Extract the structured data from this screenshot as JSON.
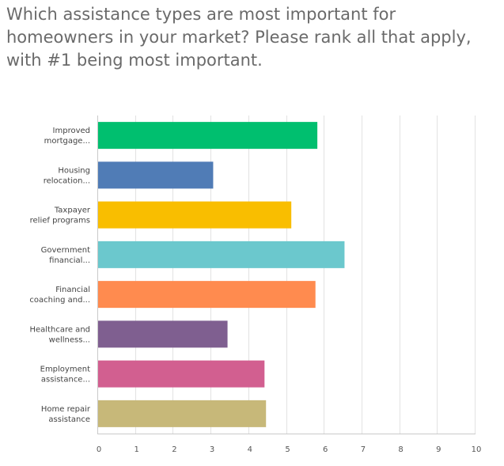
{
  "question": {
    "title": "Which assistance types are most important for homeowners in your market? Please rank all that apply, with #1 being most important."
  },
  "chart_data": {
    "type": "bar",
    "orientation": "horizontal",
    "categories": [
      [
        "Improved",
        "mortgage..."
      ],
      [
        "Housing",
        "relocation..."
      ],
      [
        "Taxpayer",
        "relief programs"
      ],
      [
        "Government",
        "financial..."
      ],
      [
        "Financial",
        "coaching and..."
      ],
      [
        "Healthcare and",
        "wellness..."
      ],
      [
        "Employment",
        "assistance..."
      ],
      [
        "Home repair",
        "assistance"
      ]
    ],
    "values": [
      5.83,
      3.07,
      5.14,
      6.55,
      5.78,
      3.45,
      4.43,
      4.47
    ],
    "colors": [
      "#00bf6f",
      "#507cb6",
      "#f9be00",
      "#6bc8cd",
      "#ff8b4f",
      "#7f5f90",
      "#d25f90",
      "#c7b879"
    ],
    "xlim": [
      0,
      10
    ],
    "xticks": [
      0,
      1,
      2,
      3,
      4,
      5,
      6,
      7,
      8,
      9,
      10
    ],
    "grid": true,
    "title": "",
    "xlabel": "",
    "ylabel": ""
  }
}
